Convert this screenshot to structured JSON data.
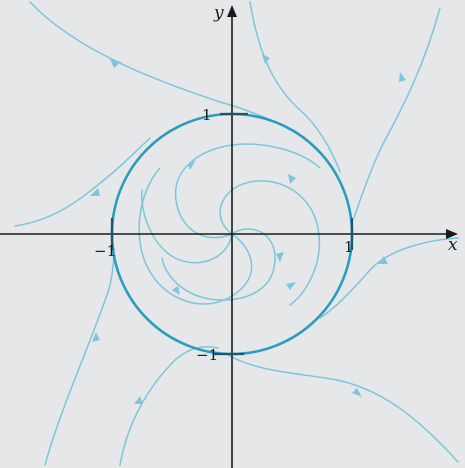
{
  "axes": {
    "x_label": "x",
    "y_label": "y"
  },
  "ticks": {
    "x_pos": "1",
    "x_neg": "−1",
    "y_pos": "1",
    "y_neg": "−1"
  },
  "colors": {
    "background": "#e6e7e8",
    "trajectory": "#7cc6dc",
    "limit_cycle": "#2a9cbf",
    "tick": "#20566b",
    "axis": "#1a1a1a"
  }
}
